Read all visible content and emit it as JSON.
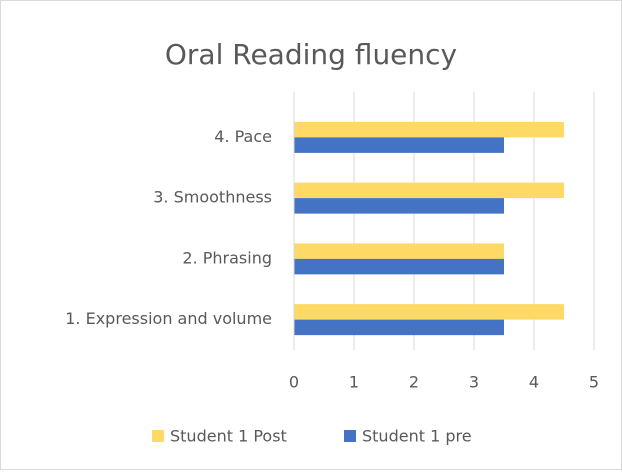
{
  "chart_data": {
    "type": "barh",
    "title": "Oral Reading fluency",
    "categories": [
      "1. Expression and volume",
      "2. Phrasing",
      "3. Smoothness",
      "4. Pace"
    ],
    "series": [
      {
        "name": "Student 1 Post",
        "color": "#ffd966",
        "values": [
          4.5,
          3.5,
          4.5,
          4.5
        ]
      },
      {
        "name": "Student 1 pre",
        "color": "#4472c4",
        "values": [
          3.5,
          3.5,
          3.5,
          3.5
        ]
      }
    ],
    "xlim": [
      0,
      5
    ],
    "xticks": [
      0,
      1,
      2,
      3,
      4,
      5
    ],
    "grid": true,
    "legend": "bottom"
  }
}
